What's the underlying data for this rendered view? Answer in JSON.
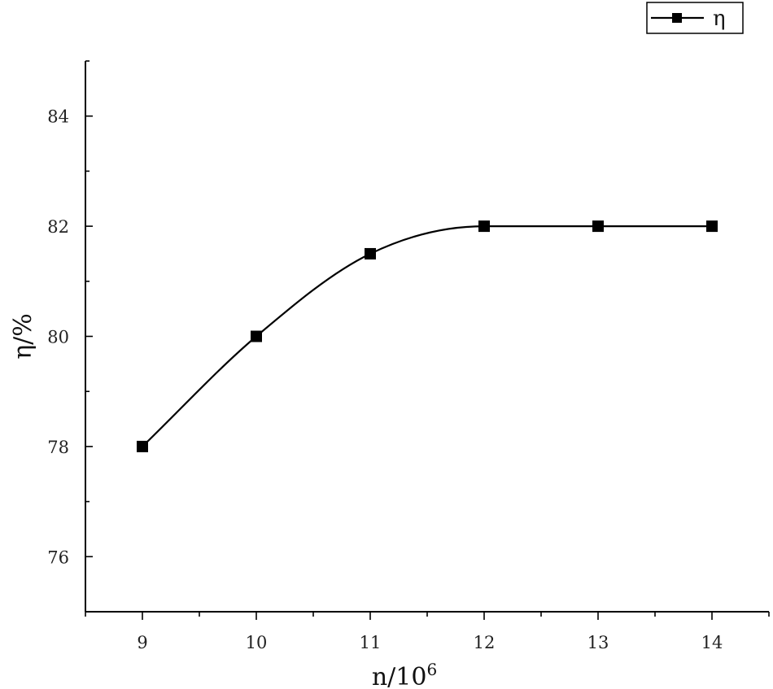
{
  "chart_data": {
    "type": "line",
    "title": "",
    "xlabel": "n/10",
    "xlabel_sup": "6",
    "ylabel": "η/%",
    "xlim": [
      8.5,
      14.5
    ],
    "ylim": [
      75,
      85
    ],
    "x_ticks": [
      9,
      10,
      11,
      12,
      13,
      14
    ],
    "x_tick_labels": [
      "9",
      "10",
      "11",
      "12",
      "13",
      "14"
    ],
    "y_ticks": [
      76,
      78,
      80,
      82,
      84
    ],
    "y_tick_labels": [
      "76",
      "78",
      "80",
      "82",
      "84"
    ],
    "legend_position": "top-right",
    "smooth": true,
    "grid": false,
    "series": [
      {
        "name": "η",
        "marker": "square",
        "color": "#000000",
        "x": [
          9,
          10,
          11,
          12,
          13,
          14
        ],
        "values": [
          78,
          80,
          81.5,
          82,
          82,
          82
        ]
      }
    ]
  }
}
